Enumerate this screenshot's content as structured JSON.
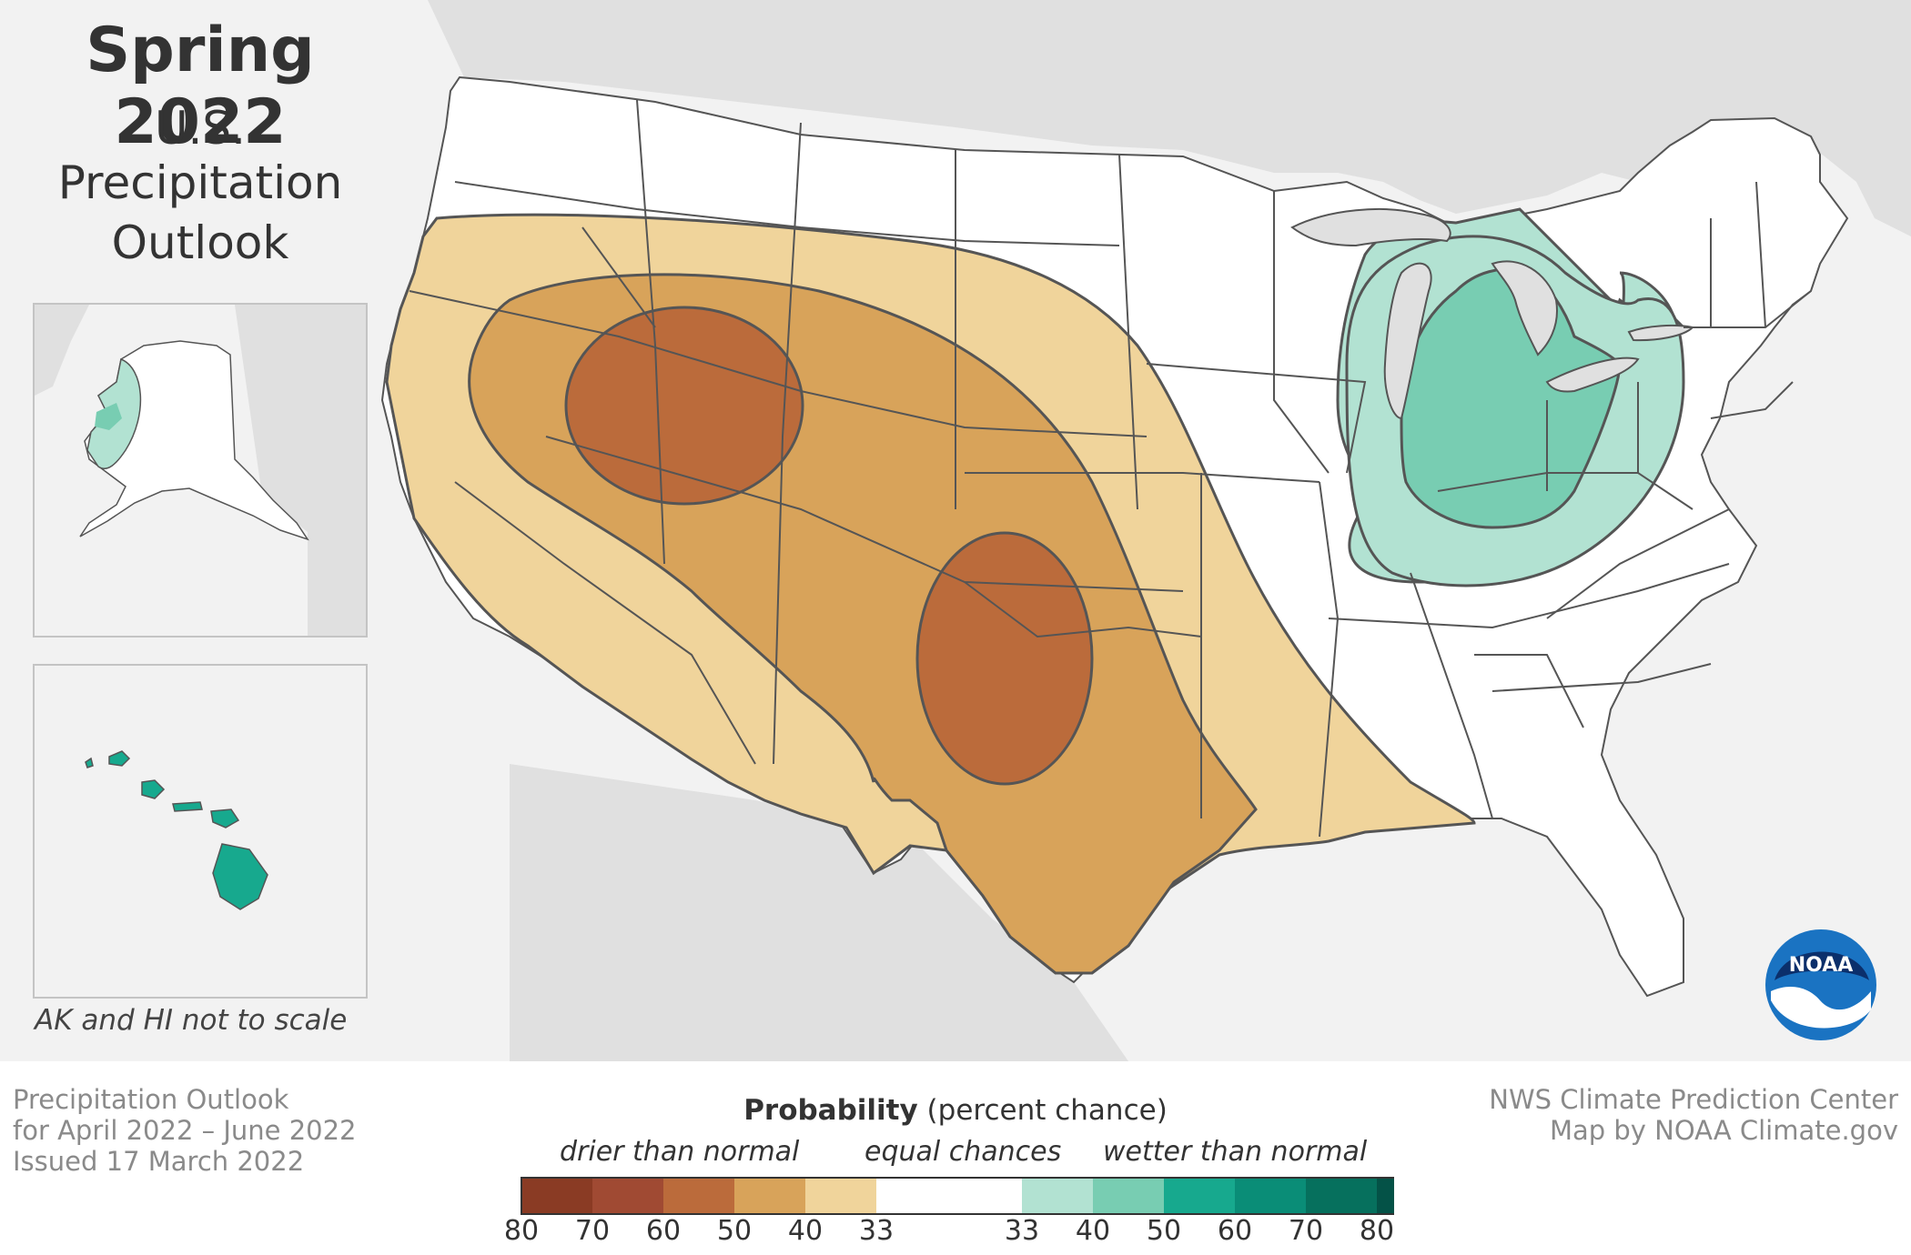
{
  "title": {
    "main": "Spring 2022",
    "line1": "U.S.",
    "line2": "Precipitation",
    "line3": "Outlook"
  },
  "inset_note": "AK and HI not to scale",
  "footer_left": {
    "line1": "Precipitation Outlook",
    "line2": "for April 2022 – June 2022",
    "line3": "Issued 17 March 2022"
  },
  "footer_right": {
    "line1": "NWS Climate Prediction Center",
    "line2": "Map by NOAA Climate.gov"
  },
  "legend": {
    "title_bold": "Probability",
    "title_rest": " (percent chance)",
    "drier": "drier than normal",
    "equal": "equal chances",
    "wetter": "wetter than normal",
    "ticks": [
      "80",
      "70",
      "60",
      "50",
      "40",
      "33",
      "33",
      "40",
      "50",
      "60",
      "70",
      "80"
    ],
    "drier_colors": [
      "#8a3b24",
      "#a04a33",
      "#bb6b3b",
      "#d8a35a",
      "#f0d49b"
    ],
    "equal_color": "#ffffff",
    "wetter_colors": [
      "#b2e2d2",
      "#78cdb2",
      "#17a98e",
      "#0a8d77",
      "#06705d",
      "#045247"
    ]
  },
  "logo_text": "NOAA",
  "colors": {
    "background": "#f2f2f2",
    "land": "#e0e0e0",
    "us_land": "#ffffff",
    "dry_33_40": "#f0d49b",
    "dry_40_50": "#d8a35a",
    "dry_50_60": "#bb6b3b",
    "wet_33_40": "#b2e2d2",
    "wet_40_50": "#78cdb2",
    "hawaii": "#17a98e"
  }
}
